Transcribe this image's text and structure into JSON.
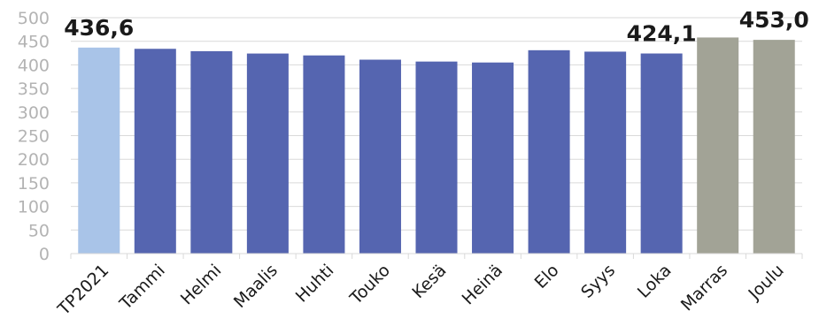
{
  "chart_data": {
    "type": "bar",
    "title": "",
    "xlabel": "",
    "ylabel": "",
    "ylim": [
      0,
      500
    ],
    "ytick_step": 50,
    "grid": true,
    "legend": "none",
    "categories": [
      "TP2021",
      "Tammi",
      "Helmi",
      "Maalis",
      "Huhti",
      "Touko",
      "Kesä",
      "Heinä",
      "Elo",
      "Syys",
      "Loka",
      "Marras",
      "Joulu"
    ],
    "values": [
      436.6,
      434,
      429,
      424,
      420,
      411,
      407,
      405,
      431,
      428,
      424.1,
      458,
      453.0
    ],
    "bar_colors": [
      "#a9c4e8",
      "#5565b0",
      "#5565b0",
      "#5565b0",
      "#5565b0",
      "#5565b0",
      "#5565b0",
      "#5565b0",
      "#5565b0",
      "#5565b0",
      "#5565b0",
      "#a2a396",
      "#a2a396"
    ],
    "data_labels": [
      {
        "index": 0,
        "text": "436,6"
      },
      {
        "index": 10,
        "text": "424,1"
      },
      {
        "index": 12,
        "text": "453,0"
      }
    ]
  }
}
